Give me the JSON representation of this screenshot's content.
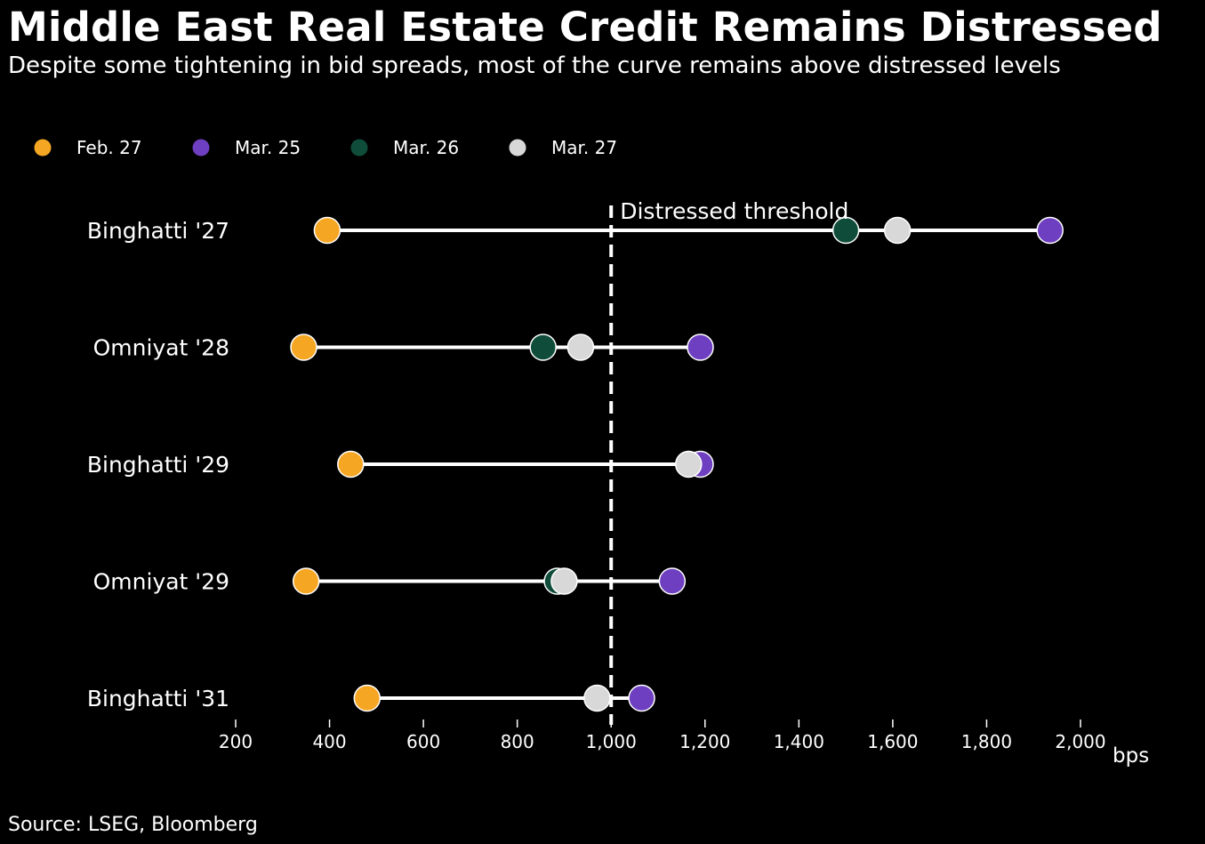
{
  "header": {
    "title": "Middle East Real Estate Credit Remains Distressed",
    "subtitle": "Despite some tightening in bid spreads, most of the curve remains above distressed levels"
  },
  "footer": {
    "source": "Source: LSEG, Bloomberg"
  },
  "chart_data": {
    "type": "scatter",
    "subtype": "dot-plot",
    "orientation": "horizontal",
    "categories": [
      "Binghatti '27",
      "Omniyat '28",
      "Binghatti '29",
      "Omniyat '29",
      "Binghatti '31"
    ],
    "series": [
      {
        "name": "Feb. 27",
        "color": "#f5a623",
        "values": [
          395,
          345,
          445,
          350,
          480
        ]
      },
      {
        "name": "Mar. 25",
        "color": "#6e3fc0",
        "values": [
          1935,
          1190,
          1190,
          1130,
          1065
        ]
      },
      {
        "name": "Mar. 26",
        "color": "#0f4d3a",
        "values": [
          1500,
          855,
          null,
          885,
          null
        ]
      },
      {
        "name": "Mar. 27",
        "color": "#d8d8d8",
        "values": [
          1610,
          935,
          1165,
          900,
          970
        ]
      }
    ],
    "xlabel": "bps",
    "xlim": [
      200,
      2000
    ],
    "xticks": [
      200,
      400,
      600,
      800,
      1000,
      1200,
      1400,
      1600,
      1800,
      2000
    ],
    "xtick_labels": [
      "200",
      "400",
      "600",
      "800",
      "1,000",
      "1,200",
      "1,400",
      "1,600",
      "1,800",
      "2,000"
    ],
    "reference_line": {
      "value": 1000,
      "label": "Distressed threshold",
      "style": "dashed"
    },
    "legend_position": "top-left",
    "grid": false
  }
}
